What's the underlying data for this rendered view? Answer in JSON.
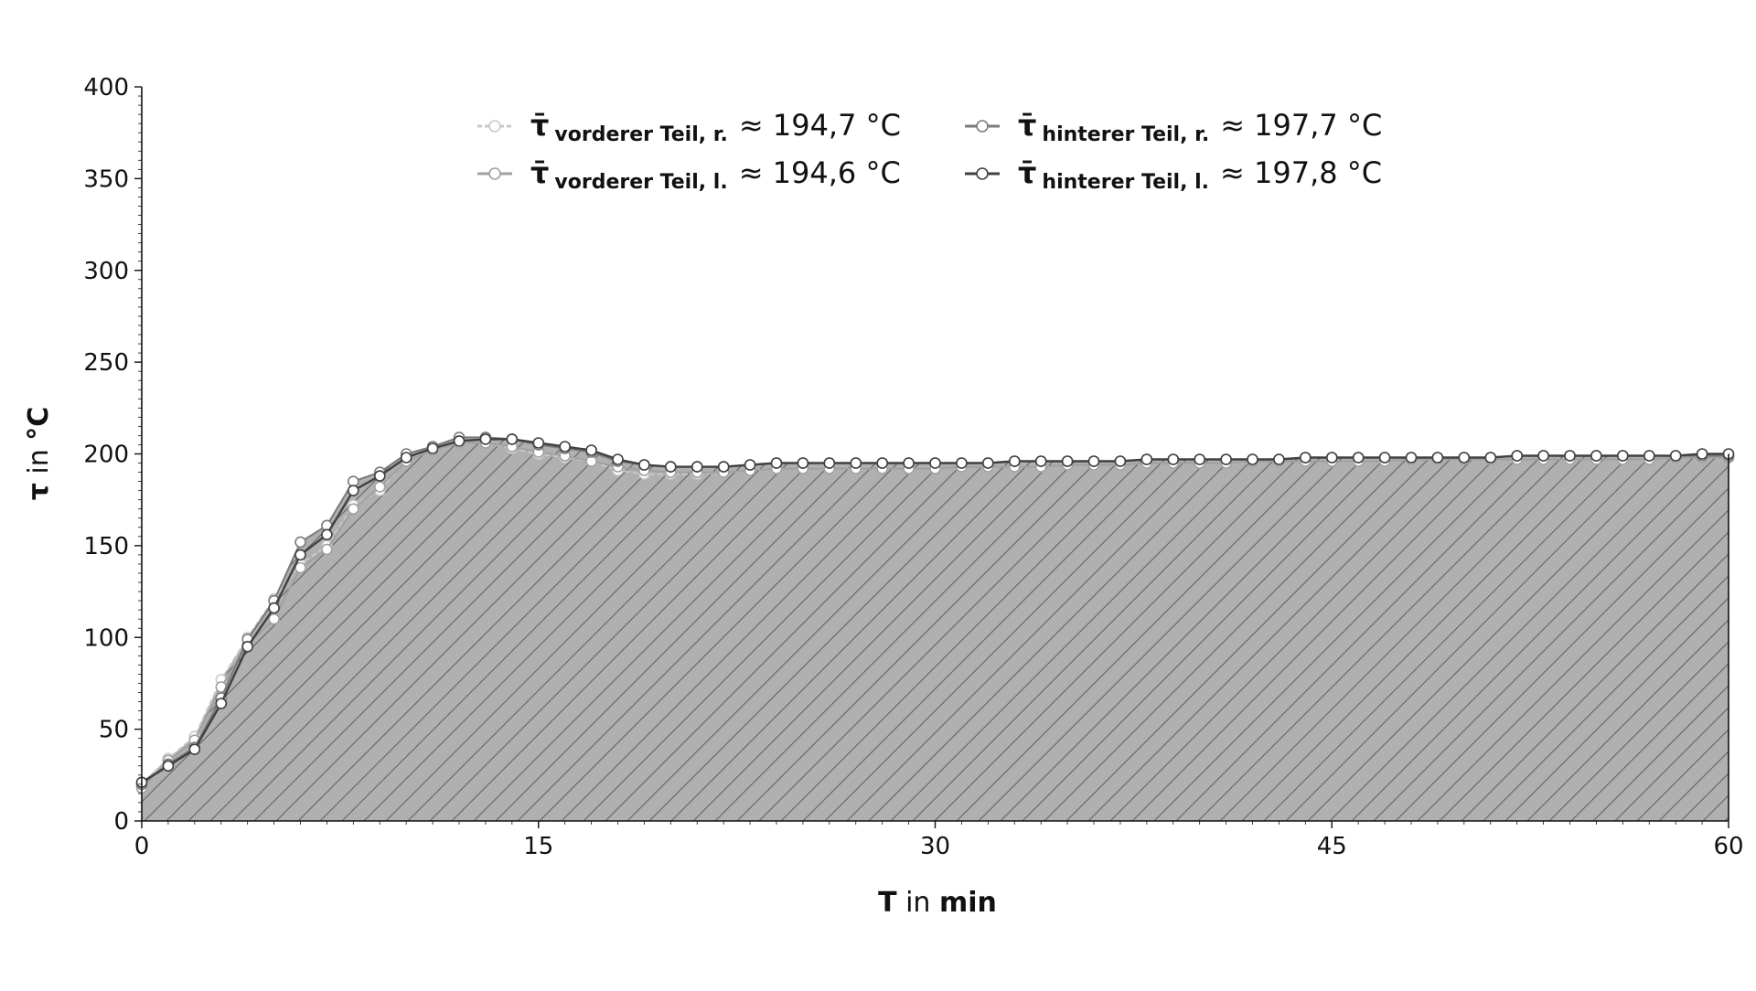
{
  "chart_data": {
    "type": "line",
    "xlabel_bold": "T",
    "xlabel_rest": " in ",
    "xlabel_unit": "min",
    "ylabel_sym": "τ",
    "ylabel_rest": " in ",
    "ylabel_unit": "°C",
    "xlim": [
      0,
      60
    ],
    "ylim": [
      0,
      400
    ],
    "xticks": [
      0,
      15,
      30,
      45,
      60
    ],
    "yticks": [
      0,
      50,
      100,
      150,
      200,
      250,
      300,
      350,
      400
    ],
    "grid": false,
    "legend_position": "top-center",
    "fill_below": true,
    "fill_color": "#b0b0b0",
    "hatch": "diagonal",
    "x": [
      0,
      1,
      2,
      3,
      4,
      5,
      6,
      7,
      8,
      9,
      10,
      11,
      12,
      13,
      14,
      15,
      16,
      17,
      18,
      19,
      20,
      21,
      22,
      23,
      24,
      25,
      26,
      27,
      28,
      29,
      30,
      31,
      32,
      33,
      34,
      35,
      36,
      37,
      38,
      39,
      40,
      41,
      42,
      43,
      44,
      45,
      46,
      47,
      48,
      49,
      50,
      51,
      52,
      53,
      54,
      55,
      56,
      57,
      58,
      59,
      60
    ],
    "series": [
      {
        "legend_symbol": "τ̄",
        "legend_sub": "vorderer Teil,  r.",
        "legend_value": "≈ 194,7 °C",
        "color": "#c8c8c8",
        "dashed": true,
        "values": [
          20,
          34,
          46,
          77,
          100,
          121,
          140,
          150,
          172,
          180,
          197,
          202,
          206,
          206,
          203,
          200,
          198,
          196,
          191,
          189,
          189,
          189,
          190,
          191,
          192,
          192,
          192,
          192,
          192,
          192,
          192,
          193,
          193,
          193,
          193,
          194,
          194,
          194,
          195,
          195,
          195,
          195,
          196,
          196,
          196,
          196,
          196,
          196,
          197,
          197,
          197,
          197,
          197,
          197,
          197,
          197,
          197,
          197,
          198,
          198,
          198
        ]
      },
      {
        "legend_symbol": "τ̄",
        "legend_sub": "vorderer Teil,  l.",
        "legend_value": "≈ 194,6 °C",
        "color": "#a0a0a0",
        "dashed": false,
        "values": [
          18,
          33,
          44,
          73,
          96,
          110,
          138,
          148,
          170,
          182,
          196,
          202,
          206,
          206,
          204,
          201,
          199,
          196,
          193,
          191,
          190,
          190,
          190,
          191,
          192,
          192,
          192,
          192,
          192,
          192,
          192,
          193,
          193,
          193,
          193,
          194,
          194,
          194,
          195,
          195,
          195,
          195,
          196,
          196,
          196,
          196,
          196,
          196,
          197,
          197,
          197,
          197,
          197,
          197,
          197,
          197,
          197,
          197,
          198,
          198,
          198
        ]
      },
      {
        "legend_symbol": "τ̄",
        "legend_sub": "hinterer Teil,  r.",
        "legend_value": "≈ 197,7 °C",
        "color": "#7a7a7a",
        "dashed": false,
        "values": [
          20,
          31,
          40,
          67,
          99,
          120,
          152,
          161,
          185,
          190,
          200,
          204,
          209,
          209,
          208,
          205,
          203,
          201,
          196,
          194,
          193,
          193,
          193,
          194,
          195,
          195,
          195,
          195,
          195,
          195,
          195,
          195,
          195,
          196,
          196,
          196,
          196,
          196,
          197,
          197,
          197,
          197,
          197,
          197,
          198,
          198,
          198,
          198,
          198,
          198,
          198,
          198,
          199,
          199,
          199,
          199,
          199,
          199,
          199,
          199,
          199
        ]
      },
      {
        "legend_symbol": "τ̄",
        "legend_sub": "hinterer Teil,  l.",
        "legend_value": "≈ 197,8 °C",
        "color": "#404040",
        "dashed": false,
        "values": [
          21,
          30,
          39,
          64,
          95,
          116,
          145,
          156,
          180,
          188,
          198,
          203,
          207,
          208,
          208,
          206,
          204,
          202,
          197,
          194,
          193,
          193,
          193,
          194,
          195,
          195,
          195,
          195,
          195,
          195,
          195,
          195,
          195,
          196,
          196,
          196,
          196,
          196,
          197,
          197,
          197,
          197,
          197,
          197,
          198,
          198,
          198,
          198,
          198,
          198,
          198,
          198,
          199,
          199,
          199,
          199,
          199,
          199,
          199,
          200,
          200
        ]
      }
    ]
  }
}
